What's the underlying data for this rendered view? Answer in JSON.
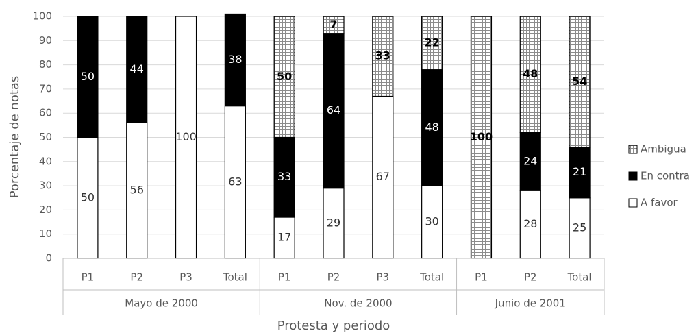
{
  "chart_data": {
    "type": "stacked_bar",
    "y_label": "Porcentaje de notas",
    "x_label": "Protesta y periodo",
    "groups": [
      {
        "name": "Mayo de 2000",
        "categories": [
          "P1",
          "P2",
          "P3",
          "Total"
        ]
      },
      {
        "name": "Nov. de 2000",
        "categories": [
          "P1",
          "P2",
          "P3",
          "Total"
        ]
      },
      {
        "name": "Junio de 2001",
        "categories": [
          "P1",
          "P2",
          "Total"
        ]
      }
    ],
    "series": [
      {
        "name": "A favor",
        "color": "#ffffff",
        "values": [
          50,
          56,
          100,
          63,
          17,
          29,
          67,
          30,
          null,
          28,
          25
        ]
      },
      {
        "name": "En contra",
        "color": "#000000",
        "values": [
          50,
          44,
          null,
          38,
          33,
          64,
          null,
          48,
          null,
          24,
          21
        ]
      },
      {
        "name": "Ambigua",
        "color": "#8c8c8c",
        "pattern": "grid",
        "values": [
          null,
          null,
          null,
          null,
          50,
          7,
          33,
          22,
          100,
          48,
          54
        ]
      }
    ],
    "ylim": [
      0,
      100
    ],
    "yticks": [
      0,
      10,
      20,
      30,
      40,
      50,
      60,
      70,
      80,
      90,
      100
    ],
    "grid": true,
    "legend": "right"
  }
}
